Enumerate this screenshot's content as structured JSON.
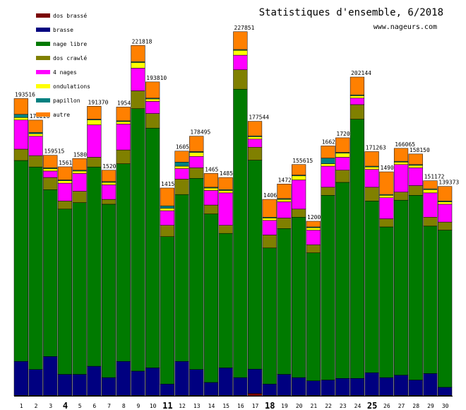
{
  "title": "Statistiques d'ensemble, 6/2018",
  "site": "www.nageurs.com",
  "colors": {
    "dos_brasse": "#7a0000",
    "brasse": "#000080",
    "nage_libre": "#007a00",
    "dos_crawle": "#808000",
    "quatre_nages": "#ff00ff",
    "ondulations": "#ffff00",
    "papillon": "#008080",
    "autre": "#ff8000"
  },
  "chart_data": {
    "type": "bar",
    "stacked": true,
    "title": "Statistiques d'ensemble, 6/2018",
    "xlabel": "",
    "ylabel": "",
    "ylim": [
      0,
      240000
    ],
    "categories": [
      "1",
      "2",
      "3",
      "4",
      "5",
      "6",
      "7",
      "8",
      "9",
      "10",
      "11",
      "12",
      "13",
      "14",
      "15",
      "16",
      "17",
      "18",
      "19",
      "20",
      "21",
      "22",
      "23",
      "24",
      "25",
      "26",
      "27",
      "28",
      "29",
      "30"
    ],
    "bold_categories": [
      "4",
      "11",
      "18",
      "25"
    ],
    "value_labels": [
      "193516",
      "178220",
      "159515",
      "1561",
      "1580",
      "191370",
      "1520",
      "1954",
      "221818",
      "193810",
      "1415",
      "1605",
      "178495",
      "1465",
      "1485",
      "227851",
      "177544",
      "1406",
      "1472",
      "155615",
      "1200",
      "1662",
      "1720",
      "202144",
      "171263",
      "1490",
      "166065",
      "158150",
      "151172",
      "139373"
    ],
    "series": [
      {
        "name": "dos brassé",
        "key": "dos_brasse",
        "values": [
          300,
          300,
          300,
          300,
          300,
          300,
          300,
          300,
          300,
          300,
          300,
          300,
          300,
          300,
          300,
          300,
          1500,
          300,
          300,
          300,
          300,
          300,
          300,
          300,
          300,
          300,
          300,
          300,
          300,
          300
        ]
      },
      {
        "name": "brasse",
        "key": "brasse",
        "values": [
          21000,
          16000,
          24000,
          13000,
          13000,
          18000,
          11000,
          21000,
          15000,
          17000,
          7000,
          21000,
          16000,
          8000,
          17000,
          11000,
          15000,
          7000,
          13000,
          11000,
          9000,
          9500,
          10500,
          10500,
          14000,
          11000,
          12500,
          9500,
          13500,
          5000
        ]
      },
      {
        "name": "nage libre",
        "key": "nage_libre",
        "values": [
          124000,
          125000,
          103000,
          102000,
          106000,
          123000,
          107000,
          122000,
          162000,
          148000,
          91000,
          103000,
          118000,
          104000,
          83000,
          178000,
          129000,
          84000,
          90000,
          99000,
          79000,
          114000,
          121000,
          160000,
          106000,
          93000,
          108000,
          114000,
          91000,
          97000
        ]
      },
      {
        "name": "dos crawlé",
        "key": "dos_crawle",
        "values": [
          7000,
          7000,
          7500,
          5000,
          7000,
          6000,
          3000,
          8500,
          11000,
          9000,
          7000,
          9500,
          6500,
          5500,
          5000,
          12000,
          8000,
          8000,
          6500,
          5000,
          5000,
          5000,
          7500,
          9000,
          8500,
          5000,
          5000,
          6000,
          5500,
          5000
        ]
      },
      {
        "name": "4 nages",
        "key": "quatre_nages",
        "values": [
          18000,
          12000,
          4000,
          11000,
          11000,
          20000,
          9000,
          16000,
          14000,
          7500,
          9000,
          6500,
          7000,
          9000,
          20000,
          9000,
          5000,
          9000,
          10000,
          18000,
          9000,
          13000,
          8000,
          4000,
          11000,
          13000,
          17000,
          11000,
          15000,
          11000
        ]
      },
      {
        "name": "ondulations",
        "key": "ondulations",
        "values": [
          1500,
          1500,
          1500,
          1500,
          1500,
          3000,
          1500,
          1500,
          3500,
          1500,
          1500,
          1500,
          2500,
          1500,
          1500,
          3000,
          1500,
          1500,
          1500,
          2500,
          1500,
          1500,
          2500,
          1500,
          1500,
          1500,
          1500,
          1500,
          2000,
          1500
        ]
      },
      {
        "name": "papillon",
        "key": "papillon",
        "values": [
          2000,
          800,
          500,
          500,
          500,
          500,
          500,
          500,
          500,
          500,
          1500,
          2500,
          500,
          500,
          500,
          500,
          500,
          500,
          500,
          500,
          500,
          3500,
          500,
          500,
          500,
          500,
          500,
          500,
          500,
          500
        ]
      },
      {
        "name": "autre",
        "key": "autre",
        "values": [
          9716,
          7620,
          7700,
          8100,
          7200,
          8000,
          7000,
          8500,
          10000,
          10000,
          11000,
          6800,
          9500,
          8500,
          7500,
          11000,
          9000,
          11000,
          9000,
          6500,
          3500,
          7500,
          9000,
          11000,
          9000,
          14000,
          8000,
          6500,
          5000,
          9000
        ]
      }
    ],
    "legend": [
      {
        "name": "dos brassé",
        "key": "dos_brasse"
      },
      {
        "name": "brasse",
        "key": "brasse"
      },
      {
        "name": "nage libre",
        "key": "nage_libre"
      },
      {
        "name": "dos crawlé",
        "key": "dos_crawle"
      },
      {
        "name": "4 nages",
        "key": "quatre_nages"
      },
      {
        "name": "ondulations",
        "key": "ondulations"
      },
      {
        "name": "papillon",
        "key": "papillon"
      },
      {
        "name": "autre",
        "key": "autre"
      }
    ],
    "legend_position": "top-left"
  }
}
